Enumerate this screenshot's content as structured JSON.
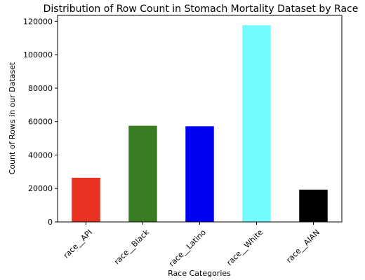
{
  "chart_data": {
    "type": "bar",
    "title": "Distribution of Row Count in Stomach Mortality Dataset by Race",
    "xlabel": "Race Categories",
    "ylabel": "Count of Rows in our Dataset",
    "categories": [
      "race__API",
      "race__Black",
      "race__Latino",
      "race__White",
      "race__AIAN"
    ],
    "values": [
      26400,
      57500,
      57200,
      117600,
      19300
    ],
    "colors": [
      "#e83323",
      "#387d23",
      "#0000f5",
      "#73fbfd",
      "#000000"
    ],
    "ylim": [
      0,
      123500
    ],
    "yticks": [
      0,
      20000,
      40000,
      60000,
      80000,
      100000,
      120000
    ],
    "grid": false,
    "legend": "none"
  }
}
